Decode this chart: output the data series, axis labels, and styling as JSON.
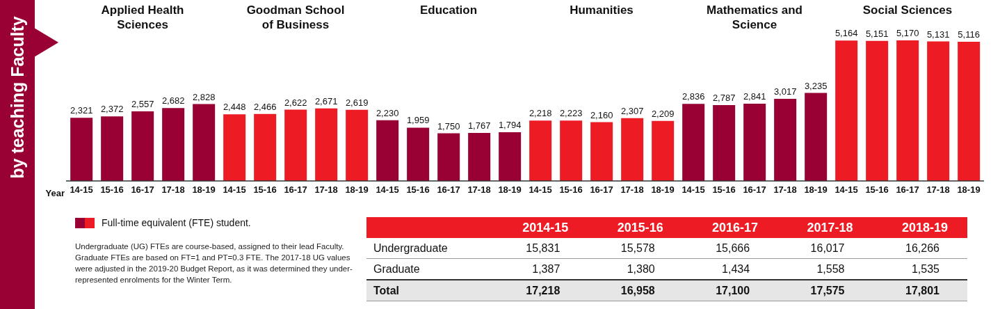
{
  "chart_data": [
    {
      "type": "bar",
      "title": "Applied Health Sciences",
      "xlabel": "Year",
      "categories": [
        "14-15",
        "15-16",
        "16-17",
        "17-18",
        "18-19"
      ],
      "values": [
        2321,
        2372,
        2557,
        2682,
        2828
      ],
      "value_labels": [
        "2,321",
        "2,372",
        "2,557",
        "2,682",
        "2,828"
      ],
      "color": "#990033"
    },
    {
      "type": "bar",
      "title": "Goodman School of Business",
      "categories": [
        "14-15",
        "15-16",
        "16-17",
        "17-18",
        "18-19"
      ],
      "values": [
        2448,
        2466,
        2622,
        2671,
        2619
      ],
      "value_labels": [
        "2,448",
        "2,466",
        "2,622",
        "2,671",
        "2,619"
      ],
      "color": "#ed1c24"
    },
    {
      "type": "bar",
      "title": "Education",
      "categories": [
        "14-15",
        "15-16",
        "16-17",
        "17-18",
        "18-19"
      ],
      "values": [
        2230,
        1959,
        1750,
        1767,
        1794
      ],
      "value_labels": [
        "2,230",
        "1,959",
        "1,750",
        "1,767",
        "1,794"
      ],
      "color": "#990033"
    },
    {
      "type": "bar",
      "title": "Humanities",
      "categories": [
        "14-15",
        "15-16",
        "16-17",
        "17-18",
        "18-19"
      ],
      "values": [
        2218,
        2223,
        2160,
        2307,
        2209
      ],
      "value_labels": [
        "2,218",
        "2,223",
        "2,160",
        "2,307",
        "2,209"
      ],
      "color": "#ed1c24"
    },
    {
      "type": "bar",
      "title": "Mathematics and Science",
      "categories": [
        "14-15",
        "15-16",
        "16-17",
        "17-18",
        "18-19"
      ],
      "values": [
        2836,
        2787,
        2841,
        3017,
        3235
      ],
      "value_labels": [
        "2,836",
        "2,787",
        "2,841",
        "3,017",
        "3,235"
      ],
      "color": "#990033"
    },
    {
      "type": "bar",
      "title": "Social Sciences",
      "categories": [
        "14-15",
        "15-16",
        "16-17",
        "17-18",
        "18-19"
      ],
      "values": [
        5164,
        5151,
        5170,
        5131,
        5116
      ],
      "value_labels": [
        "5,164",
        "5,151",
        "5,170",
        "5,131",
        "5,116"
      ],
      "color": "#ed1c24"
    },
    {
      "type": "other",
      "title": "by teaching Faculty",
      "annotations": [
        "Full-time equivalent (FTE) student.",
        "Undergraduate (UG) FTEs are course-based, assigned to their lead Faculty. Graduate FTEs are based on FT=1 and PT=0.3 FTE. The 2017-18 UG values were adjusted in the 2019-20 Budget Report, as it was determined they under-represented enrolments for the Winter Term."
      ]
    },
    {
      "type": "other",
      "annotations": [
        "2014-15",
        "2015-16",
        "2016-17",
        "2017-18",
        "2018-19",
        "Undergraduate",
        "15,831",
        "15,578",
        "15,666",
        "16,017",
        "16,266",
        "Graduate",
        "1,387",
        "1,380",
        "1,434",
        "1,558",
        "1,535",
        "Total",
        "17,218",
        "16,958",
        "17,100",
        "17,575",
        "17,801"
      ]
    }
  ]
}
